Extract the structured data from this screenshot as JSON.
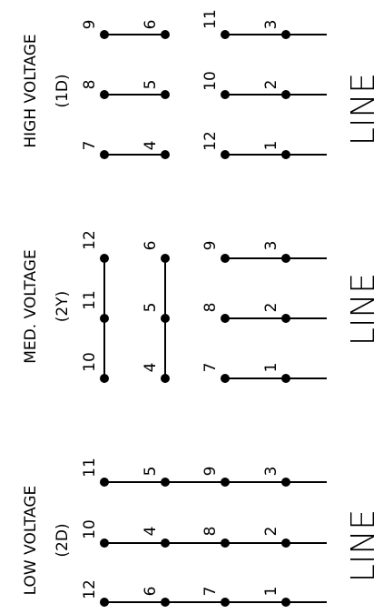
{
  "panels": [
    {
      "id": "high",
      "title": "HIGH VOLTAGE",
      "subtitle": "(1D)",
      "line_label": "LINE",
      "bars": [
        {
          "pins": [
            "7",
            "4"
          ]
        },
        {
          "pins": [
            "8",
            "5"
          ]
        },
        {
          "pins": [
            "9",
            "6"
          ]
        }
      ],
      "lines": [
        {
          "pins": [
            "12",
            "1"
          ]
        },
        {
          "pins": [
            "10",
            "2"
          ]
        },
        {
          "pins": [
            "11",
            "3"
          ]
        }
      ]
    },
    {
      "id": "med",
      "title": "MED. VOLTAGE",
      "subtitle": "(2Y)",
      "line_label": "LINE",
      "bars": [
        {
          "pins": [
            "10",
            "11",
            "12"
          ]
        },
        {
          "pins": [
            "4",
            "5",
            "6"
          ]
        }
      ],
      "lines": [
        {
          "pins": [
            "7",
            "1"
          ]
        },
        {
          "pins": [
            "8",
            "2"
          ]
        },
        {
          "pins": [
            "9",
            "3"
          ]
        }
      ]
    },
    {
      "id": "low",
      "title": "LOW VOLTAGE",
      "subtitle": "(2D)",
      "line_label": "LINE",
      "bars": [],
      "lines": [
        {
          "pins": [
            "12",
            "6",
            "7",
            "1"
          ]
        },
        {
          "pins": [
            "10",
            "4",
            "8",
            "2"
          ]
        },
        {
          "pins": [
            "11",
            "5",
            "9",
            "3"
          ]
        }
      ]
    }
  ]
}
